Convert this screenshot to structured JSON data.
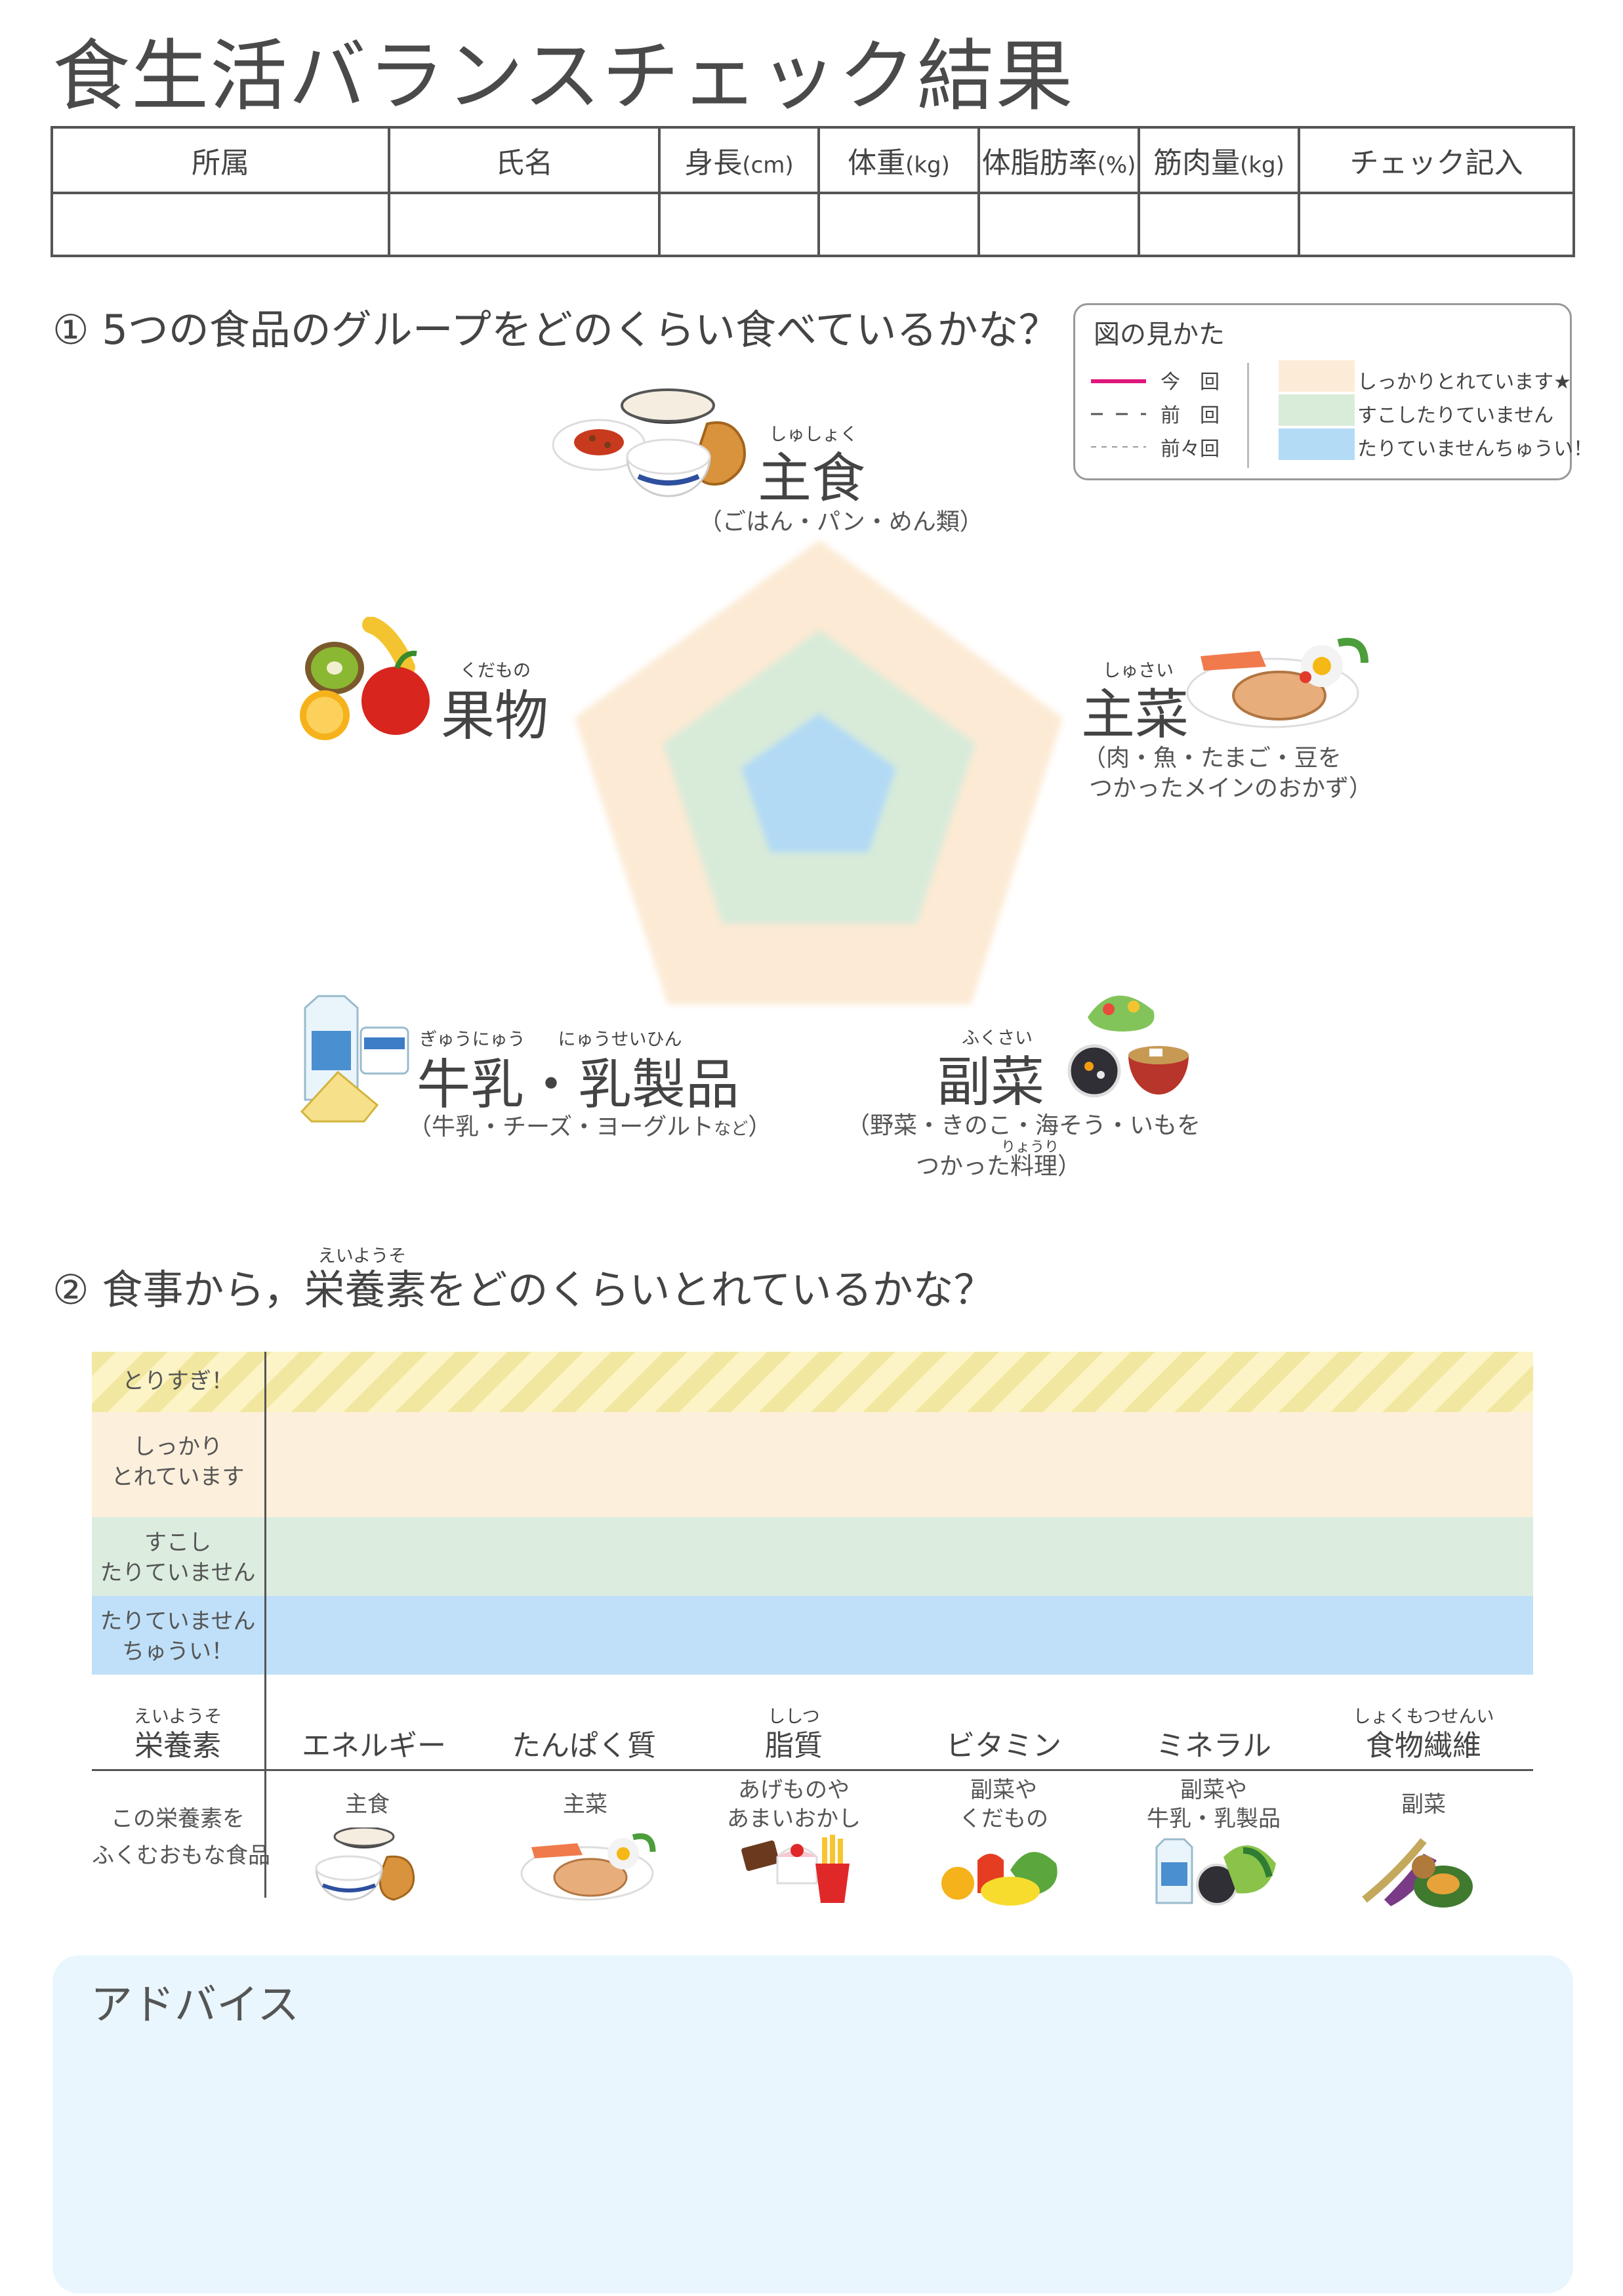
{
  "title": "食生活バランスチェック結果",
  "info_table": {
    "headers": [
      "所属",
      "氏名",
      "身長",
      "体重",
      "体脂肪率",
      "筋肉量",
      "チェック記入"
    ],
    "units": [
      "",
      "",
      "(cm)",
      "(kg)",
      "(%)",
      "(kg)",
      ""
    ]
  },
  "section1": {
    "number": "①",
    "heading": "5つの食品のグループをどのくらい食べているかな？",
    "categories": {
      "shushoku": {
        "ruby": "しゅしょく",
        "name": "主食",
        "sub": "（ごはん・パン・めん類）"
      },
      "shusai": {
        "ruby": "しゅさい",
        "name": "主菜",
        "sub1": "（肉・魚・たまご・豆を",
        "sub2": "つかったメインのおかず）"
      },
      "fukusai": {
        "ruby": "ふくさい",
        "name": "副菜",
        "sub1": "（野菜・きのこ・海そう・いもを",
        "ruby2": "りょうり",
        "sub2": "つかった料理）"
      },
      "dairy": {
        "ruby1": "ぎゅうにゅう",
        "ruby2": "にゅうせいひん",
        "name": "牛乳・乳製品",
        "sub": "（牛乳・チーズ・ヨーグルト",
        "sub_small": "など",
        "sub_end": "）"
      },
      "fruit": {
        "ruby": "くだもの",
        "name": "果物"
      }
    }
  },
  "legend": {
    "title": "図の見かた",
    "lines": [
      "今　回",
      "前　回",
      "前々回"
    ],
    "bands": [
      "しっかりとれています★",
      "すこしたりていません",
      "たりていませんちゅうい！"
    ],
    "colors": {
      "current": "#e0177c",
      "band_good": "#fcecd7",
      "band_mid": "#d9ecda",
      "band_low": "#b3dbf6"
    }
  },
  "section2": {
    "number": "②",
    "heading_pre": "食事から，",
    "heading_ruby": "えいようそ",
    "heading_word": "栄養素",
    "heading_post": "をどのくらいとれているかな？",
    "bands": [
      {
        "label1": "とりすぎ！",
        "label2": ""
      },
      {
        "label1": "しっかり",
        "label2": "とれています"
      },
      {
        "label1": "すこし",
        "label2": "たりていません"
      },
      {
        "label1": "たりていません",
        "label2": "ちゅうい！"
      }
    ],
    "row_header": {
      "ruby": "えいようそ",
      "name": "栄養素"
    },
    "food_row_header": {
      "line1": "この栄養素を",
      "line2": "ふくむおもな食品"
    },
    "nutrients": [
      {
        "ruby": "",
        "name": "エネルギー",
        "food1": "主食",
        "food2": ""
      },
      {
        "ruby": "",
        "name": "たんぱく質",
        "food1": "主菜",
        "food2": ""
      },
      {
        "ruby": "ししつ",
        "name": "脂質",
        "food1": "あげものや",
        "food2": "あまいおかし"
      },
      {
        "ruby": "",
        "name": "ビタミン",
        "food1": "副菜や",
        "food2": "くだもの"
      },
      {
        "ruby": "",
        "name": "ミネラル",
        "food1": "副菜や",
        "food2": "牛乳・乳製品"
      },
      {
        "ruby": "しょくもつせんい",
        "name": "食物繊維",
        "food1": "副菜",
        "food2": ""
      }
    ]
  },
  "advice": {
    "title": "アドバイス"
  }
}
